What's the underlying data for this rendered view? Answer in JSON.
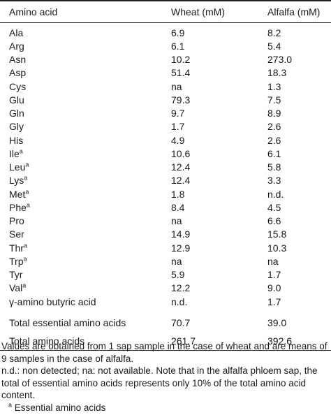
{
  "table": {
    "headers": [
      "Amino acid",
      "Wheat (mM)",
      "Alfalfa (mM)"
    ],
    "rows": [
      {
        "name": "Ala",
        "sup": "",
        "wheat": "6.9",
        "alfalfa": "8.2"
      },
      {
        "name": "Arg",
        "sup": "",
        "wheat": "6.1",
        "alfalfa": "5.4"
      },
      {
        "name": "Asn",
        "sup": "",
        "wheat": "10.2",
        "alfalfa": "273.0"
      },
      {
        "name": "Asp",
        "sup": "",
        "wheat": "51.4",
        "alfalfa": "18.3"
      },
      {
        "name": "Cys",
        "sup": "",
        "wheat": "na",
        "alfalfa": "1.3"
      },
      {
        "name": "Glu",
        "sup": "",
        "wheat": "79.3",
        "alfalfa": "7.5"
      },
      {
        "name": "Gln",
        "sup": "",
        "wheat": "9.7",
        "alfalfa": "8.9"
      },
      {
        "name": "Gly",
        "sup": "",
        "wheat": "1.7",
        "alfalfa": "2.6"
      },
      {
        "name": "His",
        "sup": "",
        "wheat": "4.9",
        "alfalfa": "2.6"
      },
      {
        "name": "Ile",
        "sup": "a",
        "wheat": "10.6",
        "alfalfa": "6.1"
      },
      {
        "name": "Leu",
        "sup": "a",
        "wheat": "12.4",
        "alfalfa": "5.8"
      },
      {
        "name": "Lys",
        "sup": "a",
        "wheat": "12.4",
        "alfalfa": "3.3"
      },
      {
        "name": "Met",
        "sup": "a",
        "wheat": "1.8",
        "alfalfa": "n.d."
      },
      {
        "name": "Phe",
        "sup": "a",
        "wheat": "8.4",
        "alfalfa": "4.5"
      },
      {
        "name": "Pro",
        "sup": "",
        "wheat": "na",
        "alfalfa": "6.6"
      },
      {
        "name": "Ser",
        "sup": "",
        "wheat": "14.9",
        "alfalfa": "15.8"
      },
      {
        "name": "Thr",
        "sup": "a",
        "wheat": "12.9",
        "alfalfa": "10.3"
      },
      {
        "name": "Trp",
        "sup": "a",
        "wheat": "na",
        "alfalfa": "na"
      },
      {
        "name": "Tyr",
        "sup": "",
        "wheat": "5.9",
        "alfalfa": "1.7"
      },
      {
        "name": "Val",
        "sup": "a",
        "wheat": "12.2",
        "alfalfa": "9.0"
      },
      {
        "name": "γ-amino butyric acid",
        "sup": "",
        "wheat": "n.d.",
        "alfalfa": "1.7"
      }
    ],
    "totals": [
      {
        "name": "Total essential amino acids",
        "wheat": "70.7",
        "alfalfa": "39.0"
      },
      {
        "name": "Total amino acids",
        "wheat": "261.7",
        "alfalfa": "392.6"
      }
    ]
  },
  "footnotes": {
    "values_note": "Values are obtained from 1 sap sample in the case of wheat and are means of 9 samples in the case of alfalfa.",
    "abbrev_note": "n.d.: non detected; na: not available. Note that in the alfalfa phloem sap, the total of essential amino acids represents only 10% of the total amino acid content.",
    "essential_marker": "a",
    "essential_note": "Essential amino acids"
  }
}
